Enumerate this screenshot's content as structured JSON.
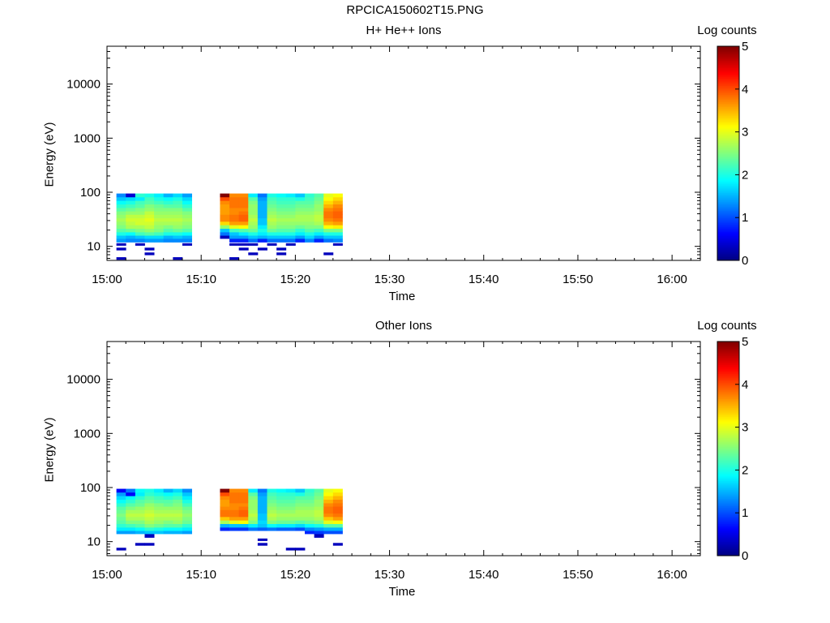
{
  "figure_title": "RPCICA150602T15.PNG",
  "chart_data": [
    {
      "type": "heatmap",
      "title": "H+ He++ Ions",
      "xlabel": "Time",
      "ylabel": "Energy (eV)",
      "y_scale": "log",
      "x_ticks": [
        "15:00",
        "15:10",
        "15:20",
        "15:30",
        "15:40",
        "15:50",
        "16:00"
      ],
      "y_ticks": [
        "10",
        "100",
        "1000",
        "10000"
      ],
      "xlim": [
        "15:00",
        "16:03"
      ],
      "ylim": [
        5.5,
        50000
      ],
      "colorbar": {
        "label": "Log counts",
        "min": 0,
        "max": 5,
        "ticks": [
          "0",
          "1",
          "2",
          "3",
          "4",
          "5"
        ]
      },
      "time_bins_min": [
        1,
        2,
        3,
        4,
        5,
        6,
        7,
        8,
        12,
        13,
        14,
        15,
        16,
        17,
        18,
        19,
        20,
        21,
        22,
        23,
        24
      ],
      "energy_bins_eV": [
        6,
        7.3,
        9,
        11,
        13,
        15,
        17,
        20,
        23,
        27,
        31,
        36,
        42,
        48,
        56,
        65,
        76,
        88
      ],
      "log_counts": [
        [
          0.3,
          null,
          0.3,
          0.3,
          1.4,
          1.6,
          2.0,
          2.3,
          2.5,
          2.6,
          2.7,
          2.6,
          2.5,
          2.3,
          2.1,
          1.9,
          1.6,
          1.3
        ],
        [
          null,
          null,
          null,
          null,
          1.3,
          1.5,
          1.9,
          2.4,
          2.7,
          2.8,
          2.9,
          2.8,
          2.6,
          2.4,
          2.2,
          2.0,
          1.7,
          0.4
        ],
        [
          null,
          null,
          null,
          0.3,
          1.3,
          1.6,
          2.2,
          2.5,
          2.7,
          2.9,
          2.9,
          2.8,
          2.6,
          2.5,
          2.3,
          2.2,
          1.8,
          2.1
        ],
        [
          null,
          0.3,
          0.3,
          null,
          1.4,
          1.7,
          2.3,
          2.6,
          2.8,
          2.9,
          3.0,
          2.9,
          2.8,
          2.6,
          2.5,
          2.3,
          2.2,
          2.0
        ],
        [
          null,
          null,
          null,
          null,
          1.4,
          1.7,
          2.2,
          2.5,
          2.6,
          2.7,
          2.8,
          2.7,
          2.6,
          2.5,
          2.4,
          2.2,
          2.0,
          1.8
        ],
        [
          null,
          null,
          null,
          null,
          1.3,
          1.5,
          2.0,
          2.3,
          2.5,
          2.7,
          2.8,
          2.7,
          2.6,
          2.5,
          2.3,
          2.1,
          1.9,
          1.5
        ],
        [
          0.3,
          null,
          null,
          null,
          1.3,
          1.6,
          2.0,
          2.4,
          2.6,
          2.7,
          2.8,
          2.7,
          2.6,
          2.5,
          2.3,
          2.2,
          2.0,
          1.7
        ],
        [
          null,
          null,
          null,
          0.3,
          1.3,
          1.5,
          1.9,
          2.3,
          2.5,
          2.6,
          2.7,
          2.6,
          2.5,
          2.3,
          2.1,
          1.9,
          1.7,
          1.4
        ],
        [
          null,
          null,
          null,
          null,
          null,
          0.3,
          1.2,
          1.6,
          2.6,
          3.3,
          3.7,
          3.7,
          3.6,
          3.6,
          3.6,
          3.7,
          4.0,
          5.0
        ],
        [
          0.3,
          null,
          null,
          0.3,
          0.8,
          1.4,
          1.6,
          2.2,
          3.0,
          3.6,
          3.8,
          3.8,
          3.7,
          3.7,
          3.8,
          3.8,
          3.8,
          3.7
        ],
        [
          null,
          null,
          0.3,
          0.3,
          0.8,
          1.4,
          1.8,
          2.3,
          3.1,
          3.6,
          3.9,
          3.9,
          3.8,
          3.7,
          3.8,
          3.8,
          3.8,
          3.7
        ],
        [
          null,
          0.3,
          null,
          0.3,
          1.2,
          1.6,
          2.0,
          2.4,
          2.6,
          2.7,
          2.8,
          2.7,
          2.6,
          2.6,
          2.6,
          2.5,
          2.3,
          1.8
        ],
        [
          null,
          null,
          0.3,
          null,
          0.8,
          1.5,
          1.8,
          2.0,
          1.8,
          1.6,
          1.6,
          1.5,
          1.5,
          1.5,
          1.5,
          1.5,
          1.4,
          1.2
        ],
        [
          null,
          null,
          null,
          0.3,
          1.2,
          1.6,
          2.0,
          2.4,
          2.6,
          2.7,
          2.8,
          2.7,
          2.6,
          2.5,
          2.4,
          2.3,
          2.2,
          2.0
        ],
        [
          null,
          0.3,
          0.3,
          null,
          1.2,
          1.6,
          2.0,
          2.3,
          2.5,
          2.6,
          2.7,
          2.6,
          2.5,
          2.4,
          2.3,
          2.2,
          2.1,
          1.9
        ],
        [
          null,
          null,
          null,
          0.3,
          1.2,
          1.6,
          2.0,
          2.3,
          2.5,
          2.6,
          2.7,
          2.6,
          2.5,
          2.4,
          2.3,
          2.2,
          2.1,
          1.8
        ],
        [
          null,
          null,
          null,
          null,
          0.8,
          1.4,
          1.8,
          2.1,
          2.4,
          2.6,
          2.7,
          2.7,
          2.6,
          2.5,
          2.4,
          2.3,
          2.0,
          1.6
        ],
        [
          null,
          null,
          null,
          null,
          1.3,
          1.7,
          2.0,
          2.3,
          2.5,
          2.6,
          2.7,
          2.7,
          2.6,
          2.5,
          2.4,
          2.3,
          2.2,
          2.1
        ],
        [
          null,
          null,
          null,
          null,
          0.8,
          1.4,
          1.8,
          2.2,
          2.5,
          2.7,
          2.8,
          2.8,
          2.7,
          2.6,
          2.6,
          2.5,
          2.4,
          2.3
        ],
        [
          null,
          0.3,
          null,
          null,
          1.2,
          1.6,
          2.0,
          2.5,
          3.1,
          3.5,
          3.7,
          3.8,
          3.8,
          3.7,
          3.5,
          3.3,
          3.1,
          3.0
        ],
        [
          null,
          null,
          null,
          0.3,
          1.3,
          1.6,
          2.0,
          2.5,
          3.2,
          3.6,
          3.8,
          3.9,
          3.9,
          3.8,
          3.7,
          3.5,
          3.3,
          3.1
        ]
      ]
    },
    {
      "type": "heatmap",
      "title": "Other Ions",
      "xlabel": "Time",
      "ylabel": "Energy (eV)",
      "y_scale": "log",
      "x_ticks": [
        "15:00",
        "15:10",
        "15:20",
        "15:30",
        "15:40",
        "15:50",
        "16:00"
      ],
      "y_ticks": [
        "10",
        "100",
        "1000",
        "10000"
      ],
      "xlim": [
        "15:00",
        "16:03"
      ],
      "ylim": [
        5.5,
        50000
      ],
      "colorbar": {
        "label": "Log counts",
        "min": 0,
        "max": 5,
        "ticks": [
          "0",
          "1",
          "2",
          "3",
          "4",
          "5"
        ]
      },
      "time_bins_min": [
        1,
        2,
        3,
        4,
        5,
        6,
        7,
        8,
        12,
        13,
        14,
        15,
        16,
        17,
        18,
        19,
        20,
        21,
        22,
        23,
        24
      ],
      "energy_bins_eV": [
        6,
        7.3,
        9,
        11,
        13,
        15,
        17,
        20,
        23,
        27,
        31,
        36,
        42,
        48,
        56,
        65,
        76,
        88
      ],
      "log_counts": [
        [
          null,
          0.3,
          null,
          null,
          null,
          1.4,
          1.8,
          2.1,
          2.3,
          2.4,
          2.5,
          2.4,
          2.3,
          2.1,
          1.9,
          1.7,
          1.4,
          0.6
        ],
        [
          null,
          null,
          null,
          null,
          null,
          1.4,
          1.8,
          2.2,
          2.5,
          2.7,
          2.8,
          2.7,
          2.5,
          2.3,
          2.1,
          1.9,
          0.6,
          1.2
        ],
        [
          null,
          null,
          0.3,
          null,
          null,
          1.5,
          1.9,
          2.3,
          2.5,
          2.7,
          2.8,
          2.7,
          2.6,
          2.4,
          2.3,
          2.1,
          1.8,
          1.9
        ],
        [
          null,
          null,
          0.3,
          null,
          0.3,
          1.6,
          2.1,
          2.5,
          2.7,
          2.8,
          2.9,
          2.8,
          2.7,
          2.6,
          2.4,
          2.3,
          2.1,
          2.0
        ],
        [
          null,
          null,
          null,
          null,
          null,
          1.6,
          2.0,
          2.4,
          2.6,
          2.7,
          2.8,
          2.7,
          2.6,
          2.5,
          2.3,
          2.2,
          2.0,
          1.8
        ],
        [
          null,
          null,
          null,
          null,
          null,
          1.5,
          1.9,
          2.3,
          2.5,
          2.7,
          2.8,
          2.7,
          2.6,
          2.4,
          2.3,
          2.1,
          1.9,
          1.5
        ],
        [
          null,
          null,
          null,
          null,
          null,
          1.5,
          1.9,
          2.3,
          2.6,
          2.7,
          2.8,
          2.7,
          2.6,
          2.5,
          2.4,
          2.2,
          2.0,
          1.7
        ],
        [
          null,
          null,
          null,
          null,
          null,
          1.4,
          1.8,
          2.1,
          2.4,
          2.5,
          2.6,
          2.5,
          2.4,
          2.2,
          2.0,
          1.8,
          1.6,
          1.3
        ],
        [
          null,
          null,
          null,
          null,
          null,
          null,
          0.8,
          1.5,
          2.7,
          3.4,
          3.8,
          3.8,
          3.7,
          3.6,
          3.6,
          3.7,
          4.0,
          5.0
        ],
        [
          null,
          null,
          null,
          null,
          null,
          null,
          0.9,
          1.6,
          3.0,
          3.6,
          3.8,
          3.8,
          3.7,
          3.7,
          3.8,
          3.8,
          3.8,
          3.7
        ],
        [
          null,
          null,
          null,
          null,
          null,
          null,
          0.9,
          1.6,
          3.1,
          3.6,
          3.9,
          3.9,
          3.8,
          3.7,
          3.8,
          3.8,
          3.8,
          3.7
        ],
        [
          null,
          null,
          null,
          null,
          null,
          null,
          1.2,
          1.8,
          2.5,
          2.7,
          2.8,
          2.7,
          2.6,
          2.6,
          2.6,
          2.5,
          2.3,
          1.8
        ],
        [
          null,
          null,
          0.3,
          0.3,
          null,
          null,
          1.1,
          1.6,
          1.7,
          1.6,
          1.6,
          1.5,
          1.5,
          1.5,
          1.5,
          1.5,
          1.4,
          1.2
        ],
        [
          null,
          null,
          null,
          null,
          null,
          null,
          1.2,
          1.9,
          2.5,
          2.7,
          2.8,
          2.7,
          2.6,
          2.5,
          2.4,
          2.3,
          2.2,
          2.0
        ],
        [
          null,
          null,
          null,
          null,
          null,
          null,
          1.1,
          1.8,
          2.4,
          2.6,
          2.7,
          2.6,
          2.5,
          2.4,
          2.3,
          2.2,
          2.1,
          1.9
        ],
        [
          null,
          0.3,
          null,
          null,
          null,
          null,
          1.1,
          1.8,
          2.4,
          2.6,
          2.7,
          2.6,
          2.5,
          2.4,
          2.3,
          2.2,
          2.1,
          1.8
        ],
        [
          null,
          0.3,
          null,
          null,
          null,
          null,
          1.0,
          1.7,
          2.3,
          2.6,
          2.7,
          2.7,
          2.6,
          2.5,
          2.4,
          2.3,
          2.0,
          1.6
        ],
        [
          null,
          null,
          null,
          null,
          null,
          0.8,
          1.3,
          1.9,
          2.4,
          2.6,
          2.7,
          2.7,
          2.6,
          2.5,
          2.4,
          2.3,
          2.2,
          2.1
        ],
        [
          null,
          null,
          null,
          null,
          0.3,
          0.9,
          1.4,
          2.0,
          2.5,
          2.7,
          2.8,
          2.8,
          2.7,
          2.6,
          2.6,
          2.5,
          2.4,
          2.3
        ],
        [
          null,
          null,
          null,
          null,
          null,
          1.0,
          1.5,
          2.3,
          3.0,
          3.4,
          3.7,
          3.8,
          3.8,
          3.7,
          3.5,
          3.3,
          3.1,
          3.0
        ],
        [
          null,
          null,
          0.3,
          null,
          null,
          1.0,
          1.5,
          2.3,
          3.1,
          3.6,
          3.8,
          3.9,
          3.9,
          3.8,
          3.7,
          3.5,
          3.3,
          3.1
        ]
      ]
    }
  ]
}
